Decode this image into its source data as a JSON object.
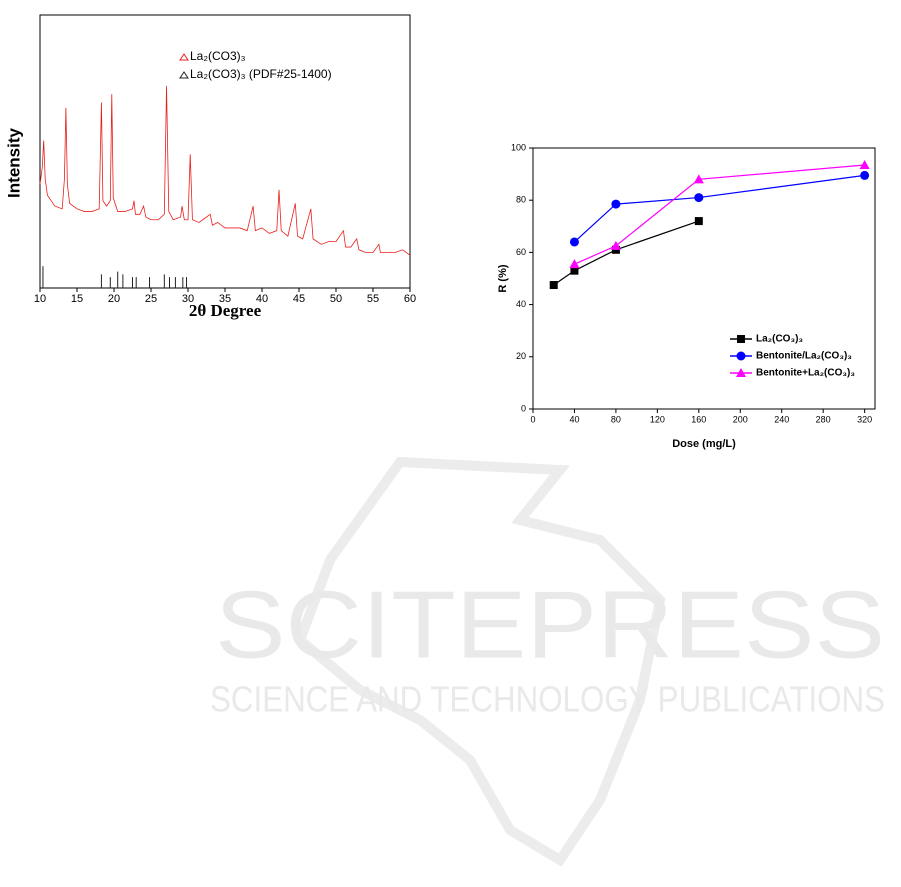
{
  "chart_data": [
    {
      "type": "line",
      "xlabel": "2θ  Degree",
      "ylabel": "Intensity",
      "xlim": [
        10,
        60
      ],
      "xticks": [
        10,
        15,
        20,
        25,
        30,
        35,
        40,
        45,
        50,
        55,
        60
      ],
      "ylim": [
        0,
        100
      ],
      "legend": "upper-center",
      "series": [
        {
          "name": "La₂(CO3)₃",
          "color": "#e8201c",
          "mark": "line",
          "x": [
            10.0,
            10.3,
            10.5,
            10.7,
            11,
            12,
            13,
            13.3,
            13.5,
            13.7,
            14,
            15,
            16,
            17,
            18,
            18.3,
            18.5,
            19,
            19.5,
            19.7,
            19.9,
            20.5,
            21.5,
            22.5,
            22.7,
            22.9,
            23.5,
            24,
            24.3,
            25,
            26,
            26.8,
            27.1,
            27.4,
            28,
            29,
            29.2,
            29.5,
            30,
            30.3,
            30.6,
            31.5,
            32,
            33,
            33.3,
            34,
            35,
            36,
            37,
            38,
            38.8,
            39.1,
            40,
            41,
            42,
            42.3,
            42.6,
            43.5,
            44.5,
            44.8,
            45.5,
            46.6,
            46.9,
            48,
            49,
            50,
            51,
            51.3,
            52,
            52.8,
            53.1,
            54,
            55,
            55.8,
            56,
            57,
            58,
            59,
            60
          ],
          "values": [
            38,
            44,
            54,
            40,
            34,
            30,
            29,
            40,
            66,
            38,
            31,
            29,
            28,
            28,
            29,
            68,
            32,
            30,
            32,
            71,
            33,
            28,
            28,
            29,
            32,
            27,
            27,
            30,
            26,
            25,
            25,
            27,
            74,
            28,
            25,
            26,
            30,
            25,
            25,
            49,
            25,
            24,
            25,
            27,
            23,
            24,
            22,
            22,
            22,
            21,
            30,
            21,
            22,
            20,
            21,
            36,
            21,
            19,
            31,
            19,
            18,
            29,
            18,
            16,
            17,
            17,
            21,
            15,
            15,
            18,
            14,
            13,
            13,
            16,
            13,
            13,
            13,
            14,
            12
          ]
        },
        {
          "name": "La₂(CO3)₃ (PDF#25-1400)",
          "color": "#222222",
          "mark": "stick",
          "x": [
            10.4,
            18.3,
            19.5,
            20.5,
            21.2,
            22.5,
            23,
            24.8,
            26.8,
            27.5,
            28.3,
            29.3,
            29.8
          ],
          "values": [
            8,
            5,
            4,
            6,
            5,
            4,
            4,
            4,
            5,
            4,
            4,
            4,
            4
          ]
        }
      ]
    },
    {
      "type": "line",
      "xlabel": "Dose (mg/L)",
      "ylabel": "R (%)",
      "xlim": [
        0,
        330
      ],
      "xticks": [
        0,
        40,
        80,
        120,
        160,
        200,
        240,
        280,
        320
      ],
      "ylim": [
        0,
        100
      ],
      "yticks": [
        0,
        20,
        40,
        60,
        80,
        100
      ],
      "legend": "lower-right",
      "series": [
        {
          "name": "La₂(CO₃)₃",
          "color": "#000000",
          "mark": "square",
          "x": [
            20,
            40,
            80,
            160
          ],
          "values": [
            47.5,
            53,
            61,
            72
          ]
        },
        {
          "name": "Bentonite/La₂(CO₃)₃",
          "color": "#0000ff",
          "mark": "circle",
          "x": [
            40,
            80,
            160,
            320
          ],
          "values": [
            64,
            78.5,
            81,
            89.5
          ]
        },
        {
          "name": "Bentonite+La₂(CO₃)₃",
          "color": "#ff00ff",
          "mark": "triangle",
          "x": [
            40,
            80,
            160,
            320
          ],
          "values": [
            55.5,
            62.5,
            88,
            93.5
          ]
        }
      ]
    }
  ],
  "watermark": {
    "title": "SCITEPRESS",
    "subtitle": "SCIENCE AND TECHNOLOGY PUBLICATIONS"
  }
}
